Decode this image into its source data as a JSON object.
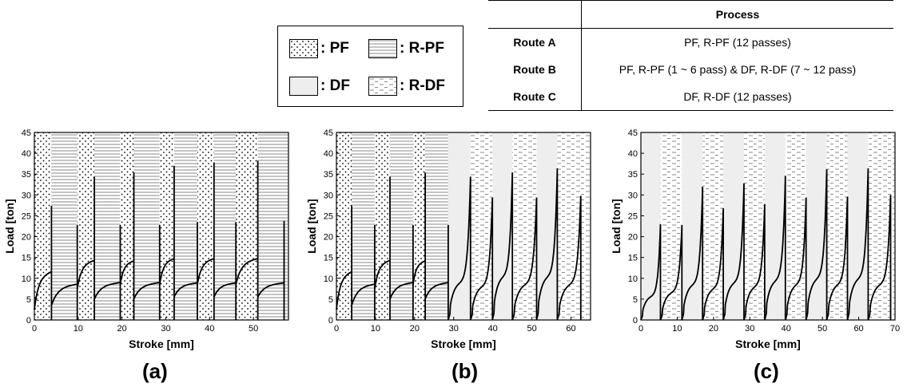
{
  "legend": {
    "items": [
      {
        "label": ": PF",
        "pattern": "dots"
      },
      {
        "label": ": R-PF",
        "pattern": "hlines"
      },
      {
        "label": ": DF",
        "pattern": "gray"
      },
      {
        "label": ": R-DF",
        "pattern": "dashes"
      }
    ]
  },
  "table": {
    "header": [
      "",
      "Process"
    ],
    "rows": [
      {
        "route": "Route A",
        "process": "PF, R-PF (12 passes)"
      },
      {
        "route": "Route B",
        "process": "PF, R-PF (1 ~ 6 pass) & DF, R-DF (7 ~ 12 pass)"
      },
      {
        "route": "Route C",
        "process": "DF, R-DF (12 passes)"
      }
    ]
  },
  "colors": {
    "line": "#000000",
    "df_fill": "#eeeeee",
    "r_pf_line": "#888888",
    "r_df_dash": "#888888"
  },
  "chart_data": [
    {
      "type": "line",
      "panel_label": "(a)",
      "xlabel": "Stroke [mm]",
      "ylabel": "Load [ton]",
      "xlim": [
        0,
        58
      ],
      "ylim": [
        0,
        45
      ],
      "xticks": [
        0,
        10,
        20,
        30,
        40,
        50
      ],
      "yticks": [
        0,
        5,
        10,
        15,
        20,
        25,
        30,
        35,
        40,
        45
      ],
      "passes": [
        {
          "pass": 1,
          "process": "PF",
          "x_start": 0.0,
          "x_end": 3.9,
          "start_load": 2.5,
          "plateau_load": 10.5,
          "peak_load": 27.4
        },
        {
          "pass": 2,
          "process": "R-PF",
          "x_start": 3.9,
          "x_end": 9.8,
          "start_load": 3.5,
          "plateau_load": 8.0,
          "peak_load": 22.8
        },
        {
          "pass": 3,
          "process": "PF",
          "x_start": 9.8,
          "x_end": 13.7,
          "start_load": 7.5,
          "plateau_load": 13.5,
          "peak_load": 34.4
        },
        {
          "pass": 4,
          "process": "R-PF",
          "x_start": 13.7,
          "x_end": 19.6,
          "start_load": 5.0,
          "plateau_load": 8.5,
          "peak_load": 22.8
        },
        {
          "pass": 5,
          "process": "PF",
          "x_start": 19.6,
          "x_end": 22.7,
          "start_load": 8.5,
          "plateau_load": 13.5,
          "peak_load": 35.4
        },
        {
          "pass": 6,
          "process": "R-PF",
          "x_start": 22.7,
          "x_end": 28.6,
          "start_load": 5.0,
          "plateau_load": 8.5,
          "peak_load": 22.8
        },
        {
          "pass": 7,
          "process": "PF",
          "x_start": 28.6,
          "x_end": 31.9,
          "start_load": 8.5,
          "plateau_load": 14.0,
          "peak_load": 37.0
        },
        {
          "pass": 8,
          "process": "R-PF",
          "x_start": 31.9,
          "x_end": 37.2,
          "start_load": 5.5,
          "plateau_load": 8.5,
          "peak_load": 23.5
        },
        {
          "pass": 9,
          "process": "PF",
          "x_start": 37.2,
          "x_end": 41.0,
          "start_load": 8.5,
          "plateau_load": 14.0,
          "peak_load": 37.8
        },
        {
          "pass": 10,
          "process": "R-PF",
          "x_start": 41.0,
          "x_end": 46.0,
          "start_load": 5.5,
          "plateau_load": 8.5,
          "peak_load": 23.5
        },
        {
          "pass": 11,
          "process": "PF",
          "x_start": 46.0,
          "x_end": 51.0,
          "start_load": 8.5,
          "plateau_load": 14.0,
          "peak_load": 38.2
        },
        {
          "pass": 12,
          "process": "R-PF",
          "x_start": 51.0,
          "x_end": 57.0,
          "start_load": 5.5,
          "plateau_load": 8.5,
          "peak_load": 23.8
        }
      ]
    },
    {
      "type": "line",
      "panel_label": "(b)",
      "xlabel": "Stroke [mm]",
      "ylabel": "Load [ton]",
      "xlim": [
        0,
        65
      ],
      "ylim": [
        0,
        45
      ],
      "xticks": [
        0,
        10,
        20,
        30,
        40,
        50,
        60
      ],
      "yticks": [
        0,
        5,
        10,
        15,
        20,
        25,
        30,
        35,
        40,
        45
      ],
      "passes": [
        {
          "pass": 1,
          "process": "PF",
          "x_start": 0.0,
          "x_end": 3.9,
          "start_load": 2.5,
          "plateau_load": 10.5,
          "peak_load": 27.4
        },
        {
          "pass": 2,
          "process": "R-PF",
          "x_start": 3.9,
          "x_end": 9.8,
          "start_load": 3.5,
          "plateau_load": 8.0,
          "peak_load": 22.8
        },
        {
          "pass": 3,
          "process": "PF",
          "x_start": 9.8,
          "x_end": 13.7,
          "start_load": 7.5,
          "plateau_load": 13.5,
          "peak_load": 34.4
        },
        {
          "pass": 4,
          "process": "R-PF",
          "x_start": 13.7,
          "x_end": 19.6,
          "start_load": 5.0,
          "plateau_load": 8.5,
          "peak_load": 22.8
        },
        {
          "pass": 5,
          "process": "PF",
          "x_start": 19.6,
          "x_end": 22.7,
          "start_load": 8.5,
          "plateau_load": 13.5,
          "peak_load": 35.4
        },
        {
          "pass": 6,
          "process": "R-PF",
          "x_start": 22.7,
          "x_end": 28.6,
          "start_load": 5.0,
          "plateau_load": 8.5,
          "peak_load": 22.8
        },
        {
          "pass": 7,
          "process": "DF",
          "x_start": 28.6,
          "x_end": 34.3,
          "start_load": 0.0,
          "plateau_load": 9.5,
          "peak_load": 34.4
        },
        {
          "pass": 8,
          "process": "R-DF",
          "x_start": 34.3,
          "x_end": 39.9,
          "start_load": 0.0,
          "plateau_load": 8.5,
          "peak_load": 29.4
        },
        {
          "pass": 9,
          "process": "DF",
          "x_start": 39.9,
          "x_end": 45.0,
          "start_load": 0.0,
          "plateau_load": 11.0,
          "peak_load": 35.4
        },
        {
          "pass": 10,
          "process": "R-DF",
          "x_start": 45.0,
          "x_end": 51.2,
          "start_load": 0.0,
          "plateau_load": 9.0,
          "peak_load": 29.4
        },
        {
          "pass": 11,
          "process": "DF",
          "x_start": 51.2,
          "x_end": 56.5,
          "start_load": 0.0,
          "plateau_load": 11.0,
          "peak_load": 36.4
        },
        {
          "pass": 12,
          "process": "R-DF",
          "x_start": 56.5,
          "x_end": 62.5,
          "start_load": 0.0,
          "plateau_load": 9.0,
          "peak_load": 29.8
        }
      ]
    },
    {
      "type": "line",
      "panel_label": "(c)",
      "xlabel": "Stroke [mm]",
      "ylabel": "Load [ton]",
      "xlim": [
        0,
        70
      ],
      "ylim": [
        0,
        45
      ],
      "xticks": [
        0,
        10,
        20,
        30,
        40,
        50,
        60,
        70
      ],
      "yticks": [
        0,
        5,
        10,
        15,
        20,
        25,
        30,
        35,
        40,
        45
      ],
      "passes": [
        {
          "pass": 1,
          "process": "DF",
          "x_start": 0.0,
          "x_end": 5.4,
          "start_load": 0.0,
          "plateau_load": 6.0,
          "peak_load": 23.0
        },
        {
          "pass": 2,
          "process": "R-DF",
          "x_start": 5.4,
          "x_end": 11.3,
          "start_load": 0.0,
          "plateau_load": 7.0,
          "peak_load": 22.8
        },
        {
          "pass": 3,
          "process": "DF",
          "x_start": 11.3,
          "x_end": 17.0,
          "start_load": 0.0,
          "plateau_load": 9.0,
          "peak_load": 32.0
        },
        {
          "pass": 4,
          "process": "R-DF",
          "x_start": 17.0,
          "x_end": 22.7,
          "start_load": 0.0,
          "plateau_load": 8.0,
          "peak_load": 26.8
        },
        {
          "pass": 5,
          "process": "DF",
          "x_start": 22.7,
          "x_end": 28.4,
          "start_load": 0.0,
          "plateau_load": 9.5,
          "peak_load": 32.8
        },
        {
          "pass": 6,
          "process": "R-DF",
          "x_start": 28.4,
          "x_end": 34.1,
          "start_load": 0.0,
          "plateau_load": 8.5,
          "peak_load": 27.8
        },
        {
          "pass": 7,
          "process": "DF",
          "x_start": 34.1,
          "x_end": 39.8,
          "start_load": 0.0,
          "plateau_load": 10.0,
          "peak_load": 34.6
        },
        {
          "pass": 8,
          "process": "R-DF",
          "x_start": 39.8,
          "x_end": 45.5,
          "start_load": 0.0,
          "plateau_load": 9.0,
          "peak_load": 29.4
        },
        {
          "pass": 9,
          "process": "DF",
          "x_start": 45.5,
          "x_end": 51.2,
          "start_load": 0.0,
          "plateau_load": 10.5,
          "peak_load": 36.2
        },
        {
          "pass": 10,
          "process": "R-DF",
          "x_start": 51.2,
          "x_end": 56.9,
          "start_load": 0.0,
          "plateau_load": 9.0,
          "peak_load": 29.6
        },
        {
          "pass": 11,
          "process": "DF",
          "x_start": 56.9,
          "x_end": 62.6,
          "start_load": 0.0,
          "plateau_load": 10.5,
          "peak_load": 36.4
        },
        {
          "pass": 12,
          "process": "R-DF",
          "x_start": 62.6,
          "x_end": 68.8,
          "start_load": 0.0,
          "plateau_load": 9.0,
          "peak_load": 30.0
        }
      ]
    }
  ]
}
